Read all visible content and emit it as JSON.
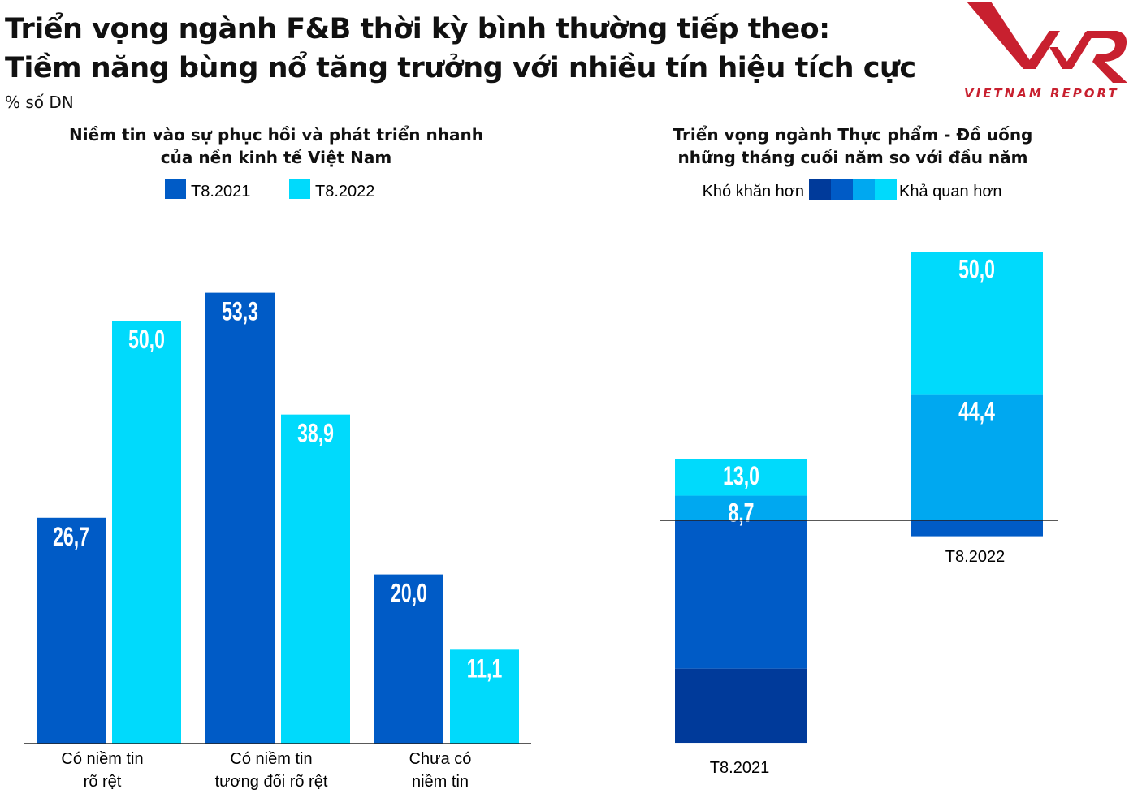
{
  "header": {
    "title_line1": "Triển vọng ngành F&B thời kỳ bình thường tiếp theo:",
    "title_line2": "Tiềm năng bùng nổ tăng trưởng với nhiều tín hiệu tích cực",
    "unit": "% số DN",
    "logo_text": "VIETNAM REPORT",
    "logo_color": "#c8202f"
  },
  "chart_data": [
    {
      "type": "bar",
      "title": "Niềm tin vào sự phục hồi và phát triển nhanh của nền kinh tế Việt Nam",
      "title_line1": "Niềm tin vào sự phục hồi và phát triển nhanh",
      "title_line2": "của nền kinh tế Việt Nam",
      "categories": [
        [
          "Có niềm tin",
          "rõ rệt"
        ],
        [
          "Có niềm tin",
          "tương đối rõ rệt"
        ],
        [
          "Chưa có",
          "niềm tin"
        ]
      ],
      "series": [
        {
          "name": "T8.2021",
          "color": "#005bc6",
          "values": [
            26.7,
            53.3,
            20.0
          ]
        },
        {
          "name": "T8.2022",
          "color": "#00dafc",
          "values": [
            50.0,
            38.9,
            11.1
          ]
        }
      ],
      "ylim": [
        0,
        55
      ],
      "grid": false,
      "legend": "top"
    },
    {
      "type": "bar",
      "stacked": "diverging",
      "title_line1": "Triển vọng ngành Thực phẩm - Đồ uống",
      "title_line2": "những tháng cuối năm so với đầu năm",
      "legend_left": "Khó khăn hơn",
      "legend_right": "Khả quan hơn",
      "legend_colors": [
        "#003a9a",
        "#005bc6",
        "#00a8f0",
        "#00dafc"
      ],
      "categories": [
        "T8.2021",
        "T8.2022"
      ],
      "segments": [
        {
          "color": "#003a9a",
          "direction": "below",
          "values": [
            26.1,
            0
          ],
          "labels": [
            null,
            null
          ]
        },
        {
          "color": "#005bc6",
          "direction": "below",
          "values": [
            52.2,
            5.6
          ],
          "labels": [
            null,
            null
          ]
        },
        {
          "color": "#00a8f0",
          "direction": "above",
          "values": [
            8.7,
            44.4
          ],
          "labels": [
            true,
            true
          ]
        },
        {
          "color": "#00dafc",
          "direction": "above",
          "values": [
            13.0,
            50.0
          ],
          "labels": [
            true,
            true
          ]
        }
      ],
      "ylim": [
        -78.3,
        94.4
      ],
      "grid": false,
      "legend": "top"
    }
  ]
}
